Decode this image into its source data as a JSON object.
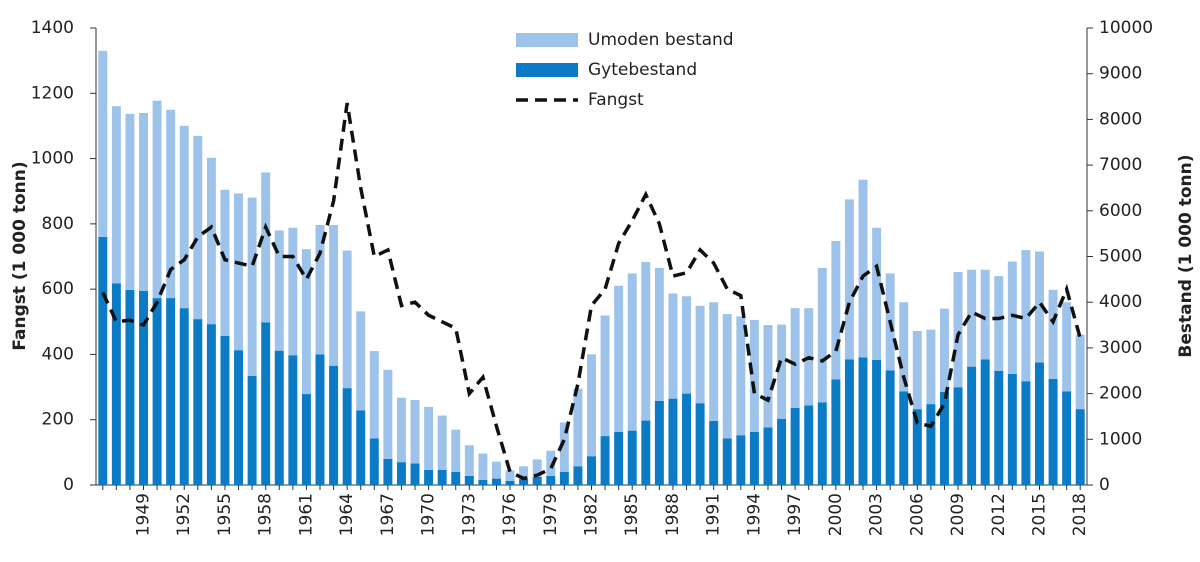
{
  "chart_data": {
    "type": "bar",
    "stacked": true,
    "y_label": "Fangst (1 000 tonn)",
    "y2_label": "Bestand (1 000 tonn)",
    "categories": [
      null,
      null,
      null,
      "1949",
      null,
      null,
      "1952",
      null,
      null,
      "1955",
      null,
      null,
      "1958",
      null,
      null,
      "1961",
      null,
      null,
      "1964",
      null,
      null,
      "1967",
      null,
      null,
      "1970",
      null,
      null,
      "1973",
      null,
      null,
      "1976",
      null,
      null,
      "1979",
      null,
      null,
      "1982",
      null,
      null,
      "1985",
      null,
      null,
      "1988",
      null,
      null,
      "1991",
      null,
      null,
      "1994",
      null,
      null,
      "1997",
      null,
      null,
      "2000",
      null,
      null,
      "2003",
      null,
      null,
      "2006",
      null,
      null,
      "2009",
      null,
      null,
      "2012",
      null,
      null,
      "2015",
      null,
      null,
      "2018"
    ],
    "ylim": [
      0,
      1400
    ],
    "yticks": [
      0,
      200,
      400,
      600,
      800,
      1000,
      1200,
      1400
    ],
    "y2lim": [
      0,
      10000
    ],
    "y2ticks": [
      0,
      1000,
      2000,
      3000,
      4000,
      5000,
      6000,
      7000,
      8000,
      9000,
      10000
    ],
    "legend": "top-center",
    "series": [
      {
        "name": "Umoden bestand",
        "type": "bar",
        "axis": "y2",
        "color": "#9dc3ea",
        "values": [
          4070,
          3880,
          3850,
          3890,
          4320,
          4120,
          3990,
          4010,
          3640,
          3200,
          3430,
          3900,
          3280,
          2630,
          2790,
          3170,
          2830,
          3080,
          3010,
          2170,
          1910,
          1950,
          1410,
          1390,
          1380,
          1190,
          920,
          670,
          580,
          370,
          230,
          280,
          380,
          550,
          1080,
          1700,
          2230,
          2640,
          3200,
          3440,
          3470,
          2910,
          2300,
          2130,
          2130,
          2600,
          2720,
          2600,
          2450,
          2240,
          2060,
          2180,
          2130,
          2940,
          3030,
          3500,
          3890,
          2890,
          2120,
          1950,
          1710,
          1630,
          1820,
          2520,
          2120,
          1960,
          2070,
          2460,
          2870,
          2430,
          1950,
          1950,
          1630
        ]
      },
      {
        "name": "Gytebestand",
        "type": "bar",
        "axis": "y2",
        "color": "#0a7bc4",
        "values": [
          5430,
          4410,
          4270,
          4250,
          4090,
          4090,
          3870,
          3630,
          3520,
          3260,
          2950,
          2390,
          3560,
          2940,
          2840,
          1990,
          2860,
          2610,
          2120,
          1630,
          1020,
          570,
          500,
          470,
          330,
          330,
          290,
          200,
          110,
          140,
          90,
          130,
          180,
          200,
          290,
          410,
          630,
          1070,
          1160,
          1190,
          1410,
          1840,
          1890,
          2000,
          1790,
          1400,
          1020,
          1090,
          1160,
          1260,
          1450,
          1690,
          1740,
          1810,
          2310,
          2750,
          2790,
          2740,
          2510,
          2050,
          1660,
          1770,
          2040,
          2140,
          2590,
          2750,
          2500,
          2430,
          2270,
          2680,
          2320,
          2050,
          1660
        ]
      },
      {
        "name": "Fangst",
        "type": "line",
        "axis": "y",
        "color": "#111111",
        "values": [
          590,
          500,
          505,
          490,
          560,
          660,
          690,
          760,
          790,
          690,
          680,
          670,
          790,
          700,
          700,
          630,
          710,
          870,
          1170,
          910,
          700,
          720,
          550,
          560,
          520,
          500,
          480,
          280,
          330,
          180,
          40,
          20,
          30,
          50,
          140,
          310,
          550,
          600,
          740,
          810,
          890,
          800,
          640,
          650,
          720,
          680,
          600,
          580,
          280,
          260,
          390,
          370,
          390,
          380,
          410,
          560,
          640,
          670,
          500,
          330,
          190,
          180,
          250,
          460,
          530,
          510,
          510,
          520,
          510,
          560,
          500,
          600,
          450
        ]
      }
    ]
  }
}
